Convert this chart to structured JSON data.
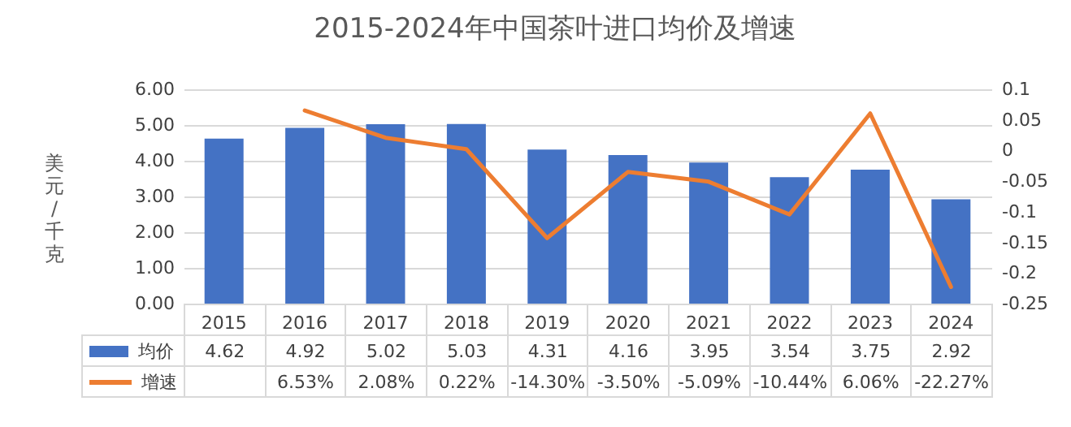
{
  "chart_data": {
    "type": "bar",
    "title": "2015-2024年中国茶叶进口均价及增速",
    "ylabel": "美元/千克",
    "categories": [
      "2015",
      "2016",
      "2017",
      "2018",
      "2019",
      "2020",
      "2021",
      "2022",
      "2023",
      "2024"
    ],
    "series": [
      {
        "name": "均价",
        "color": "#4472c4",
        "values": [
          4.62,
          4.92,
          5.02,
          5.03,
          4.31,
          4.16,
          3.95,
          3.54,
          3.75,
          2.92
        ],
        "value_labels": [
          "4.62",
          "4.92",
          "5.02",
          "5.03",
          "4.31",
          "4.16",
          "3.95",
          "3.54",
          "3.75",
          "2.92"
        ]
      },
      {
        "name": "增速",
        "type": "line",
        "axis": "y2",
        "color": "#ed7d31",
        "values": [
          null,
          0.0653,
          0.0208,
          0.0022,
          -0.143,
          -0.035,
          -0.0509,
          -0.1044,
          0.0606,
          -0.2227
        ],
        "value_labels": [
          null,
          "6.53%",
          "2.08%",
          "0.22%",
          "-14.30%",
          "-3.50%",
          "-5.09%",
          "-10.44%",
          "6.06%",
          "-22.27%"
        ]
      }
    ],
    "ylim": [
      0,
      6
    ],
    "yticks": [
      {
        "value": 0,
        "label": "0.00"
      },
      {
        "value": 1,
        "label": "1.00"
      },
      {
        "value": 2,
        "label": "2.00"
      },
      {
        "value": 3,
        "label": "3.00"
      },
      {
        "value": 4,
        "label": "4.00"
      },
      {
        "value": 5,
        "label": "5.00"
      },
      {
        "value": 6,
        "label": "6.00"
      }
    ],
    "y2lim": [
      -0.25,
      0.1
    ],
    "y2ticks": [
      -0.25,
      -0.2,
      -0.15,
      -0.1,
      -0.05,
      0,
      0.05,
      0.1
    ],
    "grid": "y",
    "legend": "bottom",
    "marker": "none",
    "line_style": "solid"
  }
}
